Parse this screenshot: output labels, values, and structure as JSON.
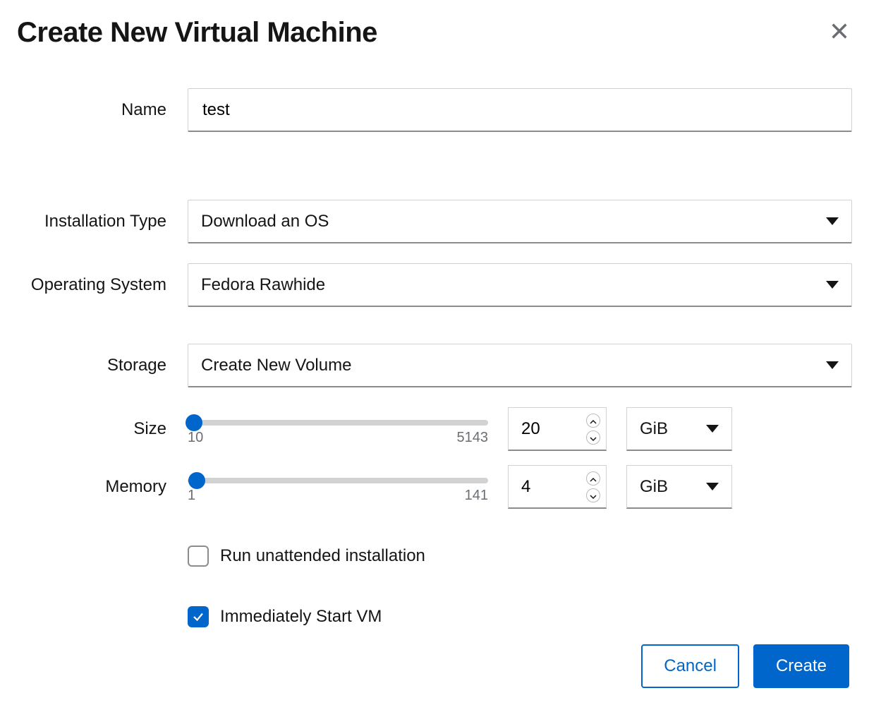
{
  "colors": {
    "primary": "#0066cc",
    "border": "#d2d2d2",
    "border_bottom": "#8a8d90",
    "text": "#151515",
    "muted": "#6a6e73",
    "bg": "#ffffff"
  },
  "dialog": {
    "title": "Create New Virtual Machine"
  },
  "labels": {
    "name": "Name",
    "installation_type": "Installation Type",
    "operating_system": "Operating System",
    "storage": "Storage",
    "size": "Size",
    "memory": "Memory"
  },
  "fields": {
    "name": {
      "value": "test"
    },
    "installation_type": {
      "value": "Download an OS"
    },
    "operating_system": {
      "value": "Fedora Rawhide"
    },
    "storage": {
      "value": "Create New Volume"
    },
    "size": {
      "value": "20",
      "min": "10",
      "max": "5143",
      "unit": "GiB",
      "thumb_pct": 2
    },
    "memory": {
      "value": "4",
      "min": "1",
      "max": "141",
      "unit": "GiB",
      "thumb_pct": 3
    }
  },
  "checkboxes": {
    "unattended": {
      "label": "Run unattended installation",
      "checked": false
    },
    "autostart": {
      "label": "Immediately Start VM",
      "checked": true
    }
  },
  "buttons": {
    "cancel": "Cancel",
    "create": "Create"
  }
}
